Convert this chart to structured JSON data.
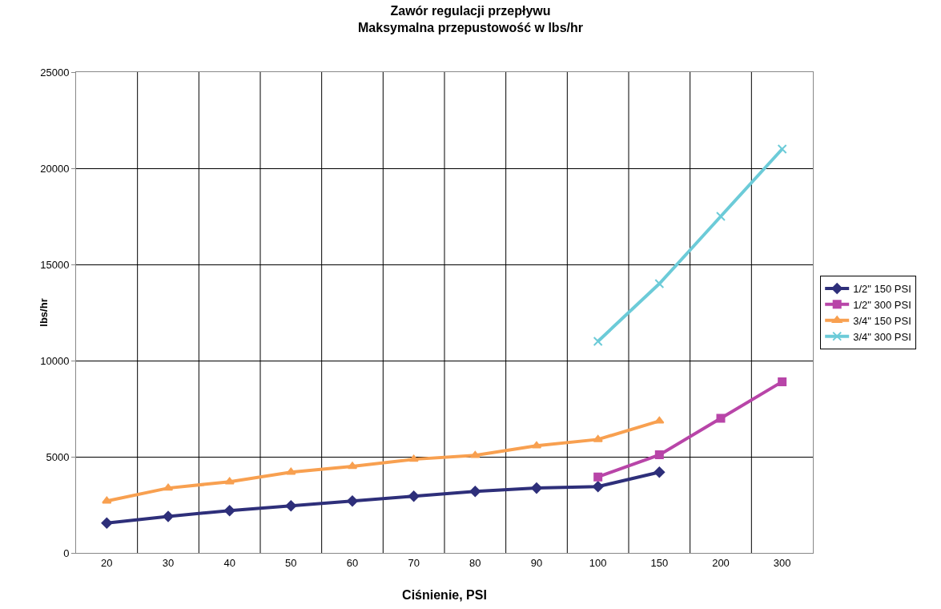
{
  "chart_data": {
    "type": "line",
    "title": "Zawór regulacji przepływu\nMaksymalna przepustowość w lbs/hr",
    "xlabel": "Ciśnienie, PSI",
    "ylabel": "lbs/hr",
    "categories": [
      "20",
      "30",
      "40",
      "50",
      "60",
      "70",
      "80",
      "90",
      "100",
      "150",
      "200",
      "300"
    ],
    "series": [
      {
        "name": "1/2\" 150 PSI",
        "color": "#2e2f7a",
        "marker": "diamond",
        "values": [
          1550,
          1900,
          2200,
          2450,
          2700,
          2950,
          3200,
          3370,
          3450,
          4200,
          null,
          null
        ]
      },
      {
        "name": "1/2\" 300 PSI",
        "color": "#b845a8",
        "marker": "square",
        "values": [
          null,
          null,
          null,
          null,
          null,
          null,
          null,
          null,
          3950,
          5100,
          7000,
          8900
        ]
      },
      {
        "name": "3/4\" 150 PSI",
        "color": "#f8a050",
        "marker": "triangle",
        "values": [
          2700,
          3370,
          3700,
          4200,
          4500,
          4870,
          5070,
          5570,
          5900,
          6860,
          null,
          null
        ]
      },
      {
        "name": "3/4\" 300 PSI",
        "color": "#6ccbd8",
        "marker": "cross",
        "values": [
          null,
          null,
          null,
          null,
          null,
          null,
          null,
          null,
          11000,
          14000,
          17500,
          21000
        ]
      }
    ],
    "ylim": [
      0,
      25000
    ],
    "yticks": [
      0,
      5000,
      10000,
      15000,
      20000,
      25000
    ],
    "grid": true,
    "legend": "right",
    "line_style": "solid"
  }
}
